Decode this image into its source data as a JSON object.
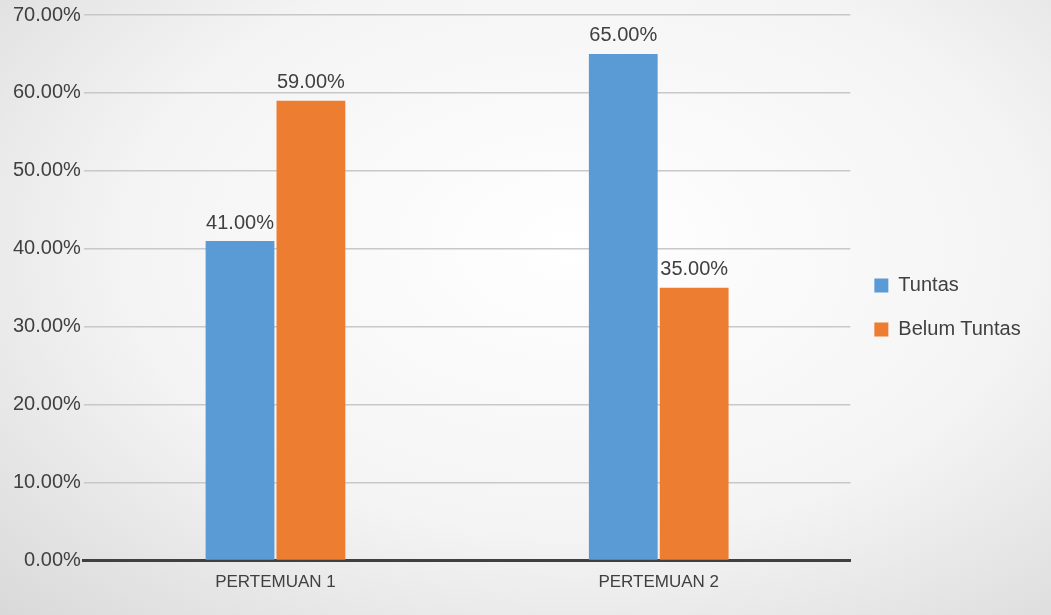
{
  "chart_data": {
    "type": "bar",
    "categories": [
      "PERTEMUAN 1",
      "PERTEMUAN 2"
    ],
    "series": [
      {
        "name": "Tuntas",
        "color": "#5b9bd5",
        "values": [
          41,
          65
        ],
        "value_labels": [
          "41.00%",
          "65.00%"
        ]
      },
      {
        "name": "Belum Tuntas",
        "color": "#ed7d31",
        "values": [
          59,
          35
        ],
        "value_labels": [
          "59.00%",
          "35.00%"
        ]
      }
    ],
    "ylim": [
      0,
      70
    ],
    "yticks": [
      {
        "value": 0,
        "label": "0.00%"
      },
      {
        "value": 10,
        "label": "10.00%"
      },
      {
        "value": 20,
        "label": "20.00%"
      },
      {
        "value": 30,
        "label": "30.00%"
      },
      {
        "value": 40,
        "label": "40.00%"
      },
      {
        "value": 50,
        "label": "50.00%"
      },
      {
        "value": 60,
        "label": "60.00%"
      },
      {
        "value": 70,
        "label": "70.00%"
      }
    ],
    "grid": "y",
    "legend": "right"
  }
}
